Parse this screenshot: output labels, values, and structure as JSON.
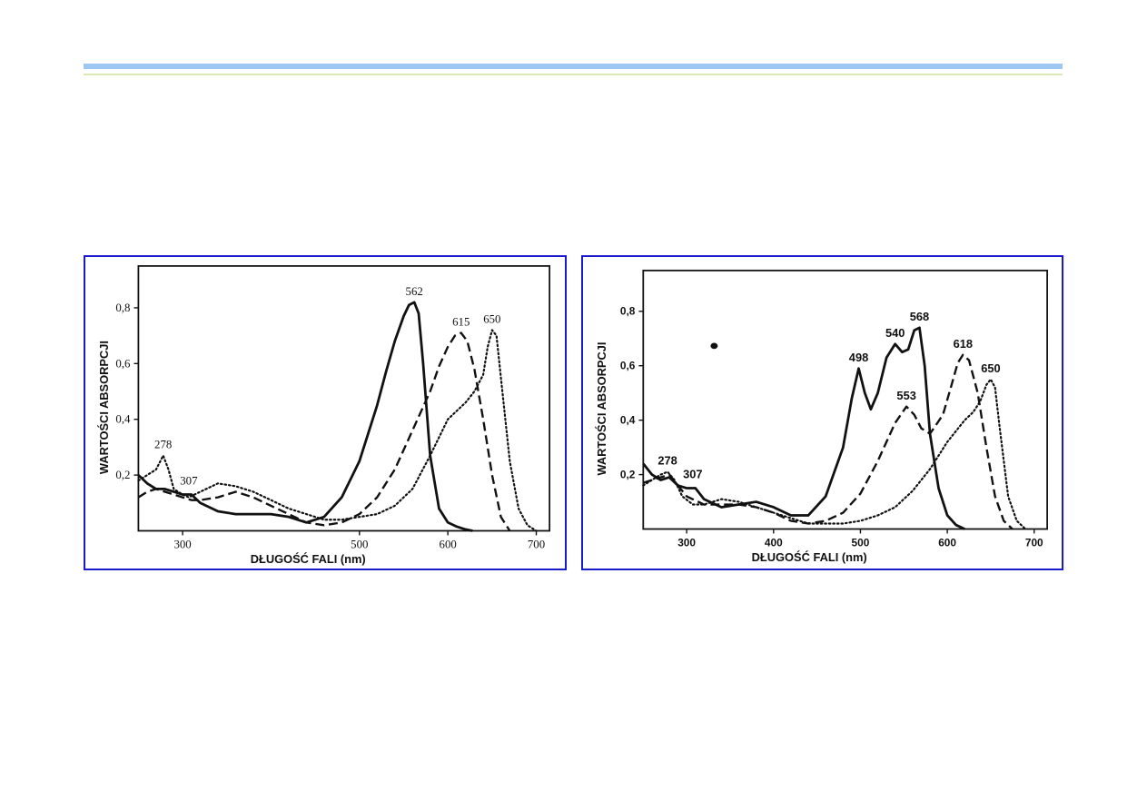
{
  "chart_data": [
    {
      "type": "line",
      "xlabel": "DŁUGOŚĆ FALI (nm)",
      "ylabel": "WARTOŚCI ABSORPCJI",
      "xlim": [
        250,
        715
      ],
      "ylim": [
        0,
        0.95
      ],
      "xticks": [
        {
          "v": 300,
          "label": "300"
        },
        {
          "v": 500,
          "label": "500"
        },
        {
          "v": 600,
          "label": "600"
        },
        {
          "v": 700,
          "label": "700"
        }
      ],
      "yticks": [
        {
          "v": 0.2,
          "label": "0,2"
        },
        {
          "v": 0.4,
          "label": "0,4"
        },
        {
          "v": 0.6,
          "label": "0,6"
        },
        {
          "v": 0.8,
          "label": "0,8"
        }
      ],
      "series": [
        {
          "style": "solid",
          "color": "#111111",
          "x": [
            250,
            260,
            270,
            280,
            290,
            300,
            310,
            320,
            340,
            360,
            380,
            400,
            420,
            440,
            460,
            480,
            500,
            520,
            530,
            540,
            550,
            556,
            562,
            567,
            572,
            580,
            590,
            600,
            610,
            620,
            628
          ],
          "y": [
            0.2,
            0.17,
            0.15,
            0.15,
            0.14,
            0.13,
            0.13,
            0.1,
            0.07,
            0.06,
            0.06,
            0.06,
            0.05,
            0.03,
            0.05,
            0.12,
            0.25,
            0.45,
            0.57,
            0.68,
            0.77,
            0.81,
            0.82,
            0.78,
            0.6,
            0.27,
            0.08,
            0.03,
            0.015,
            0.005,
            0.0
          ]
        },
        {
          "style": "dashed",
          "color": "#111111",
          "x": [
            250,
            260,
            270,
            280,
            290,
            300,
            310,
            320,
            340,
            360,
            380,
            400,
            420,
            440,
            460,
            480,
            500,
            520,
            540,
            560,
            580,
            590,
            600,
            608,
            615,
            622,
            630,
            640,
            650,
            660,
            670
          ],
          "y": [
            0.12,
            0.14,
            0.15,
            0.14,
            0.13,
            0.12,
            0.11,
            0.11,
            0.12,
            0.14,
            0.12,
            0.09,
            0.06,
            0.03,
            0.02,
            0.03,
            0.06,
            0.12,
            0.22,
            0.36,
            0.5,
            0.59,
            0.66,
            0.7,
            0.71,
            0.68,
            0.58,
            0.4,
            0.2,
            0.05,
            0.0
          ]
        },
        {
          "style": "dotted",
          "color": "#111111",
          "x": [
            250,
            260,
            270,
            278,
            284,
            290,
            300,
            307,
            320,
            340,
            360,
            380,
            400,
            420,
            440,
            460,
            480,
            500,
            520,
            540,
            560,
            580,
            600,
            620,
            630,
            640,
            645,
            650,
            655,
            660,
            670,
            680,
            690,
            700
          ],
          "y": [
            0.18,
            0.2,
            0.22,
            0.27,
            0.22,
            0.15,
            0.13,
            0.12,
            0.14,
            0.17,
            0.16,
            0.14,
            0.11,
            0.08,
            0.06,
            0.04,
            0.04,
            0.05,
            0.06,
            0.09,
            0.15,
            0.27,
            0.4,
            0.46,
            0.5,
            0.56,
            0.66,
            0.72,
            0.7,
            0.55,
            0.25,
            0.08,
            0.02,
            0.0
          ]
        }
      ],
      "annotations": [
        {
          "label": "562",
          "x": 562,
          "y": 0.82
        },
        {
          "label": "615",
          "x": 615,
          "y": 0.71
        },
        {
          "label": "650",
          "x": 650,
          "y": 0.72
        },
        {
          "label": "278",
          "x": 278,
          "y": 0.27
        },
        {
          "label": "307",
          "x": 307,
          "y": 0.14
        }
      ]
    },
    {
      "type": "line",
      "xlabel": "DŁUGOŚĆ FALI (nm)",
      "ylabel": "WARTOŚCI ABSORPCJI",
      "xlim": [
        250,
        715
      ],
      "ylim": [
        0,
        0.95
      ],
      "xticks": [
        {
          "v": 300,
          "label": "300"
        },
        {
          "v": 400,
          "label": "400"
        },
        {
          "v": 500,
          "label": "500"
        },
        {
          "v": 600,
          "label": "600"
        },
        {
          "v": 700,
          "label": "700"
        }
      ],
      "yticks": [
        {
          "v": 0.2,
          "label": "0,2"
        },
        {
          "v": 0.4,
          "label": "0,4"
        },
        {
          "v": 0.6,
          "label": "0,6"
        },
        {
          "v": 0.8,
          "label": "0,8"
        }
      ],
      "series": [
        {
          "style": "solid",
          "color": "#111111",
          "x": [
            250,
            260,
            270,
            280,
            290,
            300,
            310,
            320,
            340,
            360,
            380,
            400,
            420,
            440,
            460,
            480,
            490,
            498,
            505,
            512,
            520,
            530,
            540,
            548,
            555,
            562,
            568,
            574,
            580,
            590,
            600,
            610,
            620
          ],
          "y": [
            0.24,
            0.2,
            0.18,
            0.19,
            0.16,
            0.15,
            0.15,
            0.11,
            0.08,
            0.09,
            0.1,
            0.08,
            0.05,
            0.05,
            0.12,
            0.3,
            0.48,
            0.59,
            0.5,
            0.44,
            0.5,
            0.63,
            0.68,
            0.65,
            0.66,
            0.73,
            0.74,
            0.6,
            0.35,
            0.15,
            0.05,
            0.015,
            0.0
          ]
        },
        {
          "style": "dashed",
          "color": "#111111",
          "x": [
            250,
            260,
            270,
            280,
            290,
            300,
            320,
            340,
            360,
            380,
            400,
            420,
            440,
            460,
            480,
            500,
            520,
            540,
            553,
            562,
            570,
            580,
            595,
            605,
            612,
            618,
            625,
            635,
            645,
            655,
            665,
            675
          ],
          "y": [
            0.17,
            0.18,
            0.19,
            0.2,
            0.16,
            0.12,
            0.09,
            0.09,
            0.09,
            0.08,
            0.06,
            0.03,
            0.02,
            0.03,
            0.06,
            0.13,
            0.25,
            0.39,
            0.45,
            0.42,
            0.37,
            0.35,
            0.42,
            0.53,
            0.61,
            0.64,
            0.62,
            0.5,
            0.3,
            0.12,
            0.03,
            0.0
          ]
        },
        {
          "style": "dotted",
          "color": "#111111",
          "x": [
            250,
            260,
            270,
            278,
            286,
            295,
            307,
            320,
            340,
            360,
            380,
            400,
            420,
            440,
            460,
            480,
            500,
            520,
            540,
            560,
            580,
            600,
            620,
            630,
            638,
            645,
            650,
            655,
            660,
            670,
            680,
            690
          ],
          "y": [
            0.16,
            0.18,
            0.2,
            0.21,
            0.18,
            0.12,
            0.09,
            0.09,
            0.11,
            0.1,
            0.08,
            0.06,
            0.04,
            0.02,
            0.02,
            0.02,
            0.03,
            0.05,
            0.08,
            0.14,
            0.22,
            0.32,
            0.4,
            0.43,
            0.47,
            0.53,
            0.55,
            0.52,
            0.38,
            0.12,
            0.03,
            0.0
          ]
        }
      ],
      "annotations": [
        {
          "label": "498",
          "x": 498,
          "y": 0.59
        },
        {
          "label": "540",
          "x": 540,
          "y": 0.68
        },
        {
          "label": "568",
          "x": 568,
          "y": 0.74
        },
        {
          "label": "553",
          "x": 553,
          "y": 0.45
        },
        {
          "label": "618",
          "x": 618,
          "y": 0.64
        },
        {
          "label": "650",
          "x": 650,
          "y": 0.55
        },
        {
          "label": "278",
          "x": 278,
          "y": 0.21
        },
        {
          "label": "307",
          "x": 307,
          "y": 0.16
        }
      ]
    }
  ]
}
